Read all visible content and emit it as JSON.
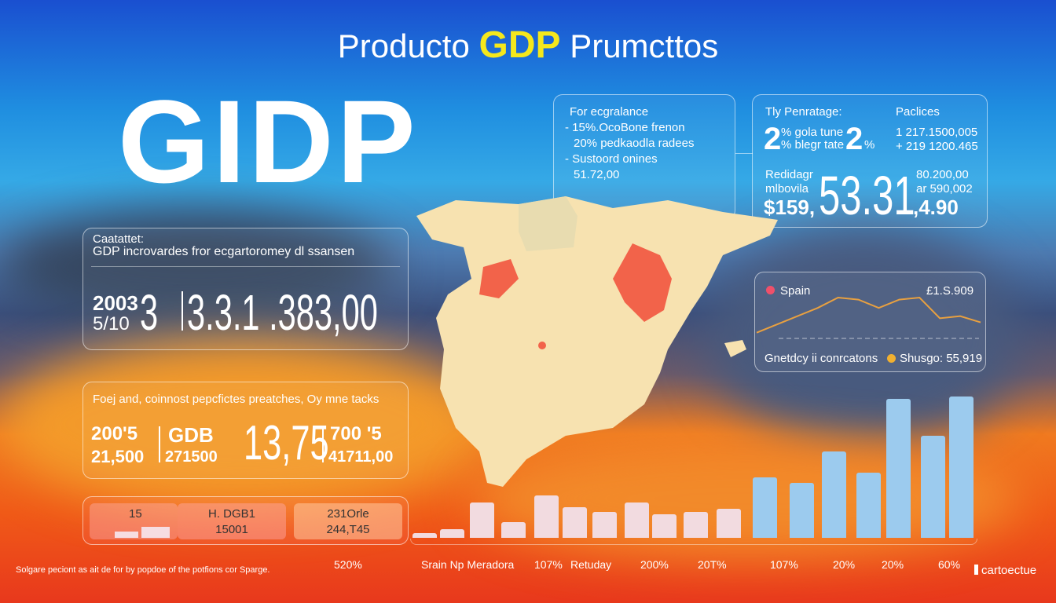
{
  "title": {
    "prefix": "Producto",
    "highlight": "GDP",
    "suffix": "Prumcttos"
  },
  "hero": "GIDP",
  "panel_top_mid": {
    "heading": "For ecgralance",
    "lines": [
      "- 15%.OcoBone frenon",
      "20% pedkaodla radees",
      "- Sustoord onines",
      "51.72,00"
    ]
  },
  "panel_top_right": {
    "label1": "Tly Penratage:",
    "label2": "Paclices",
    "pct_big1": "2",
    "pct_text1": "% gola tune",
    "pct_text2": "% blegr tate",
    "pct_big2": "2",
    "pct_small": "%",
    "pct_small1": "%",
    "values": [
      "1  217.1500,005",
      "+  219 1200.465"
    ],
    "sub_label1": "Redidagr",
    "sub_label2": "mlbovila",
    "money_prefix": "$159,",
    "money_big": "53.31",
    "money_suffix": ",4.90",
    "side_values": [
      "80.200,00",
      "ar 590,002"
    ]
  },
  "panel_mid_left": {
    "heading1": "Caatattet:",
    "heading2": "GDP incrovardes fror ecgartoromey dl ssansen",
    "year_top": "2003",
    "year_bottom": "5/10",
    "year_big": "3",
    "value": "3.3.1 .383,00"
  },
  "panel_orange": {
    "heading": "Foej and, coinnost pepcfictes preatches, Oy mne tacks",
    "c1_top": "200'5",
    "c1_bottom": "21,500",
    "c2_top": "GDB",
    "c2_bottom": "271500",
    "c3_big": "13,75",
    "c4_top": "700 '5",
    "c4_bottom": "41711,00"
  },
  "panel_line": {
    "legend_label": "Spain",
    "top_value": "£1.S.909",
    "bottom_label": "Gnetdcy ii conrcatons",
    "bottom_value": "Shusgo: 55,919",
    "series_color": "#e8a040",
    "legend_color": "#f0506a",
    "values": [
      2,
      6,
      10,
      14,
      19,
      18,
      14,
      18,
      19,
      9,
      10,
      7
    ]
  },
  "bottom_boxes": {
    "b1": "15",
    "b2_top": "H. DGB1",
    "b2_bottom": "15001",
    "b3_top": "231Orle",
    "b3_bottom": "244,T45"
  },
  "bars": {
    "values": [
      6,
      11,
      45,
      20,
      54,
      39,
      33,
      45,
      30,
      33,
      37,
      77,
      70,
      110,
      83,
      177,
      130,
      180
    ],
    "color_light": "#f2dbe0",
    "color_blue": "#9ccbee"
  },
  "x_labels": [
    "520%",
    "Srain Np Meradora",
    "107%",
    "Retuday",
    "200%",
    "20T%",
    "107%",
    "20%",
    "20%",
    "60%"
  ],
  "footnote": "Solgare peciont as ait de for by popdoe of the potfions cor Sparge.",
  "brand": "cartoectue",
  "colors": {
    "accent": "#f5e81c",
    "map_fill": "#f7e2b0",
    "map_highlight": "#f2634a"
  }
}
